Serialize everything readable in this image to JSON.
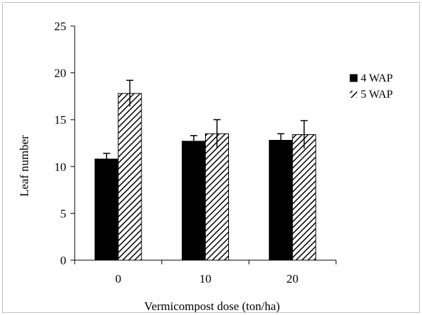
{
  "chart_data": {
    "type": "bar",
    "title": "",
    "xlabel": "Vermicompost dose (ton/ha)",
    "ylabel": "Leaf number",
    "categories": [
      "0",
      "10",
      "20"
    ],
    "ylim": [
      0,
      25
    ],
    "yticks": [
      "0",
      "5",
      "10",
      "15",
      "20",
      "25"
    ],
    "grid": false,
    "legend_position": "right",
    "series": [
      {
        "name": "4 WAP",
        "fill": "solid",
        "color": "#000000",
        "values": [
          10.8,
          12.7,
          12.8
        ],
        "errors": [
          0.6,
          0.6,
          0.7
        ]
      },
      {
        "name": "5 WAP",
        "fill": "diagonal-hatch",
        "color": "#000000",
        "values": [
          17.8,
          13.5,
          13.4
        ],
        "errors": [
          1.4,
          1.5,
          1.5
        ]
      }
    ]
  }
}
